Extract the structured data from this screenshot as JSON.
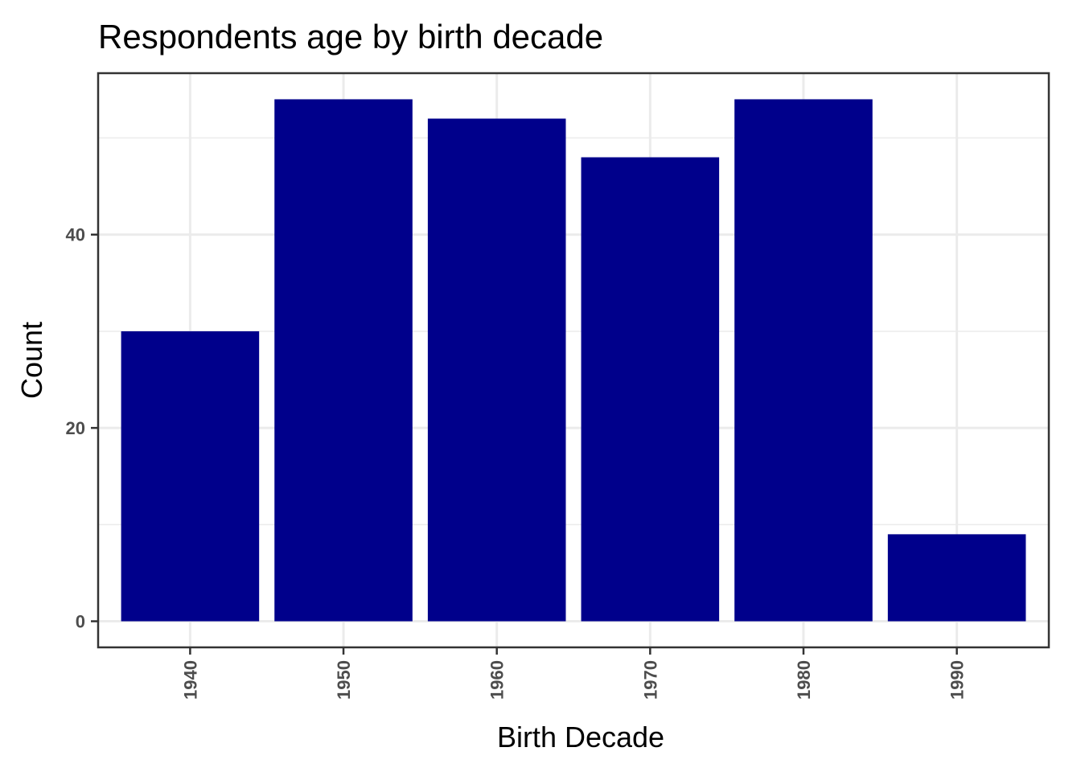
{
  "chart_data": {
    "type": "bar",
    "title": "Respondents age by birth decade",
    "xlabel": "Birth Decade",
    "ylabel": "Count",
    "categories": [
      "1940",
      "1950",
      "1960",
      "1970",
      "1980",
      "1990"
    ],
    "values": [
      30,
      54,
      52,
      48,
      54,
      9
    ],
    "y_ticks": [
      0,
      20,
      40
    ],
    "y_minor_ticks": [
      10,
      30,
      50
    ],
    "ylim": [
      -2.7,
      56.7
    ],
    "grid": true,
    "legend": "none",
    "bar_color": "#00008B"
  }
}
